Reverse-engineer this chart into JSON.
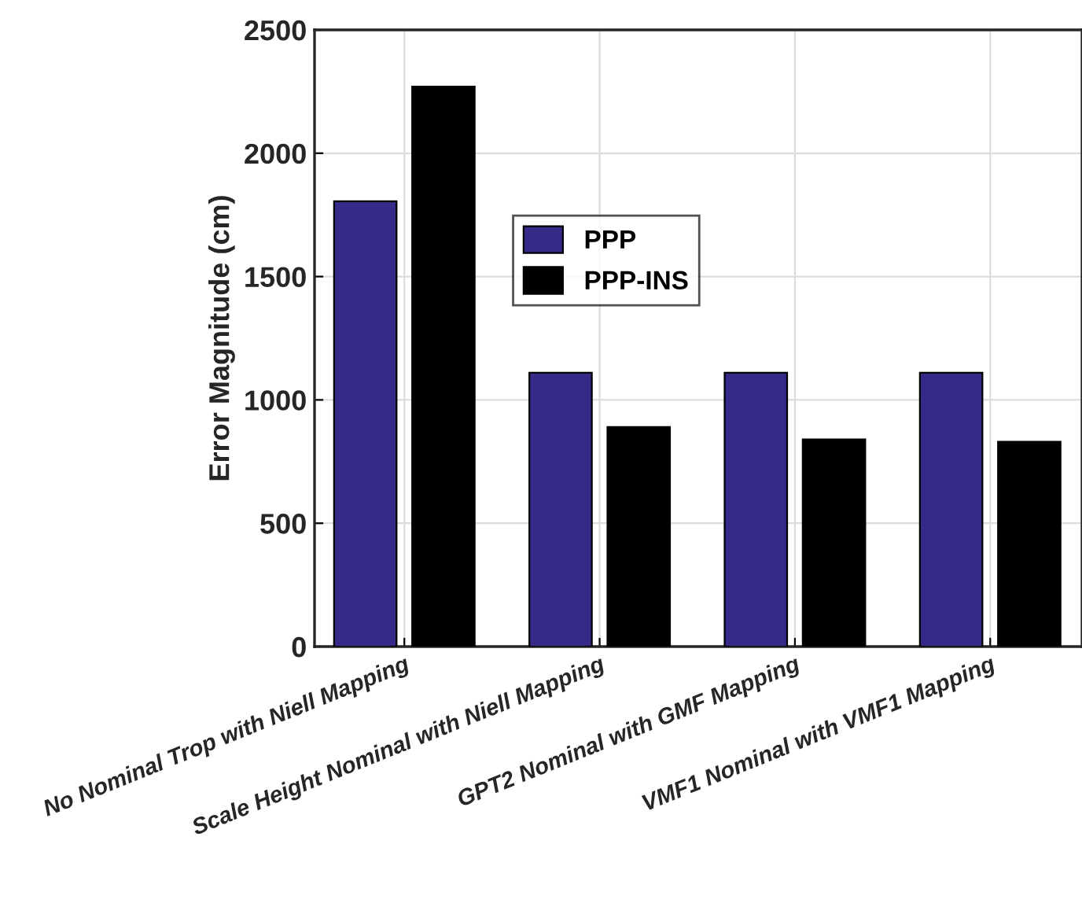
{
  "chart_data": {
    "type": "bar",
    "ylabel": "Error Magnitude (cm)",
    "categories": [
      "No Nominal Trop with Niell Mapping",
      "Scale Height Nominal with Niell Mapping",
      "GPT2 Nominal with GMF Mapping",
      "VMF1 Nominal with VMF1 Mapping"
    ],
    "series": [
      {
        "name": "PPP",
        "color": "#352a87",
        "values": [
          1805,
          1110,
          1110,
          1110
        ]
      },
      {
        "name": "PPP-INS",
        "color": "#000000",
        "values": [
          2270,
          890,
          840,
          830
        ]
      }
    ],
    "ylim": [
      0,
      2500
    ],
    "yticks": [
      0,
      500,
      1000,
      1500,
      2000,
      2500
    ],
    "grid": true,
    "legend": "top"
  }
}
